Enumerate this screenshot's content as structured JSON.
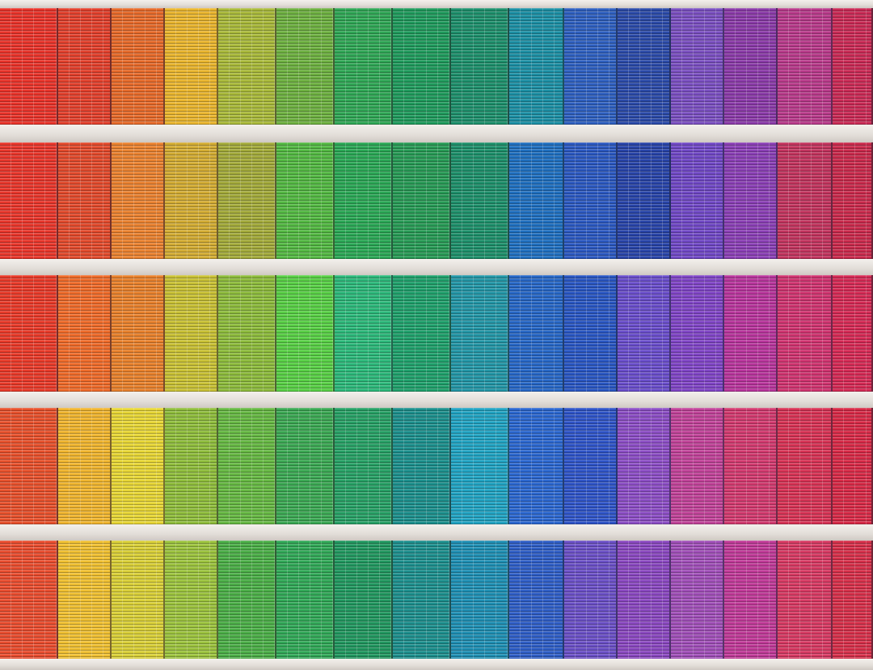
{
  "scene": {
    "subject": "building facade",
    "bands": [
      {
        "colors": [
          "#e8332a",
          "#e2402c",
          "#e66a2a",
          "#e9b52e",
          "#a9b93a",
          "#6db040",
          "#2fa655",
          "#1f9a5c",
          "#1d8f6b",
          "#1c8fa4",
          "#2e5fbf",
          "#2b4aa8",
          "#7a4fc0",
          "#8a3aa8",
          "#b83a8a",
          "#c92a55"
        ]
      },
      {
        "colors": [
          "#e8362b",
          "#e24a2c",
          "#ea8230",
          "#d3ac33",
          "#a3aa3a",
          "#53b842",
          "#2aa755",
          "#279a55",
          "#1d8f6a",
          "#1f6fbf",
          "#2b58c0",
          "#2844a8",
          "#7048c5",
          "#8a3fb5",
          "#c2345e",
          "#c92a4c"
        ]
      },
      {
        "colors": [
          "#e83a29",
          "#ef6b2a",
          "#e8812c",
          "#c9c135",
          "#8dbb3c",
          "#58cf45",
          "#2cb87a",
          "#1fa06b",
          "#2396a6",
          "#2767c6",
          "#2956c2",
          "#6a4ecb",
          "#8045c6",
          "#b8359c",
          "#d03470",
          "#d52a55"
        ]
      },
      {
        "colors": [
          "#e7512c",
          "#f0b52f",
          "#e7d636",
          "#8fbd3c",
          "#66b843",
          "#3ba853",
          "#27a065",
          "#1c8f8c",
          "#21a3c2",
          "#2b67cf",
          "#2f54c7",
          "#8c4ec5",
          "#c14399",
          "#d23a6f",
          "#d73355",
          "#d72a47"
        ]
      },
      {
        "colors": [
          "#e94d2f",
          "#f0c032",
          "#d9cf38",
          "#9cc33e",
          "#4bae47",
          "#31a857",
          "#21975f",
          "#1d8f8d",
          "#1f8fb3",
          "#2f5ec6",
          "#6b50c6",
          "#8a48c0",
          "#a04fb8",
          "#c03a98",
          "#d73a63",
          "#d6304a"
        ]
      }
    ]
  }
}
